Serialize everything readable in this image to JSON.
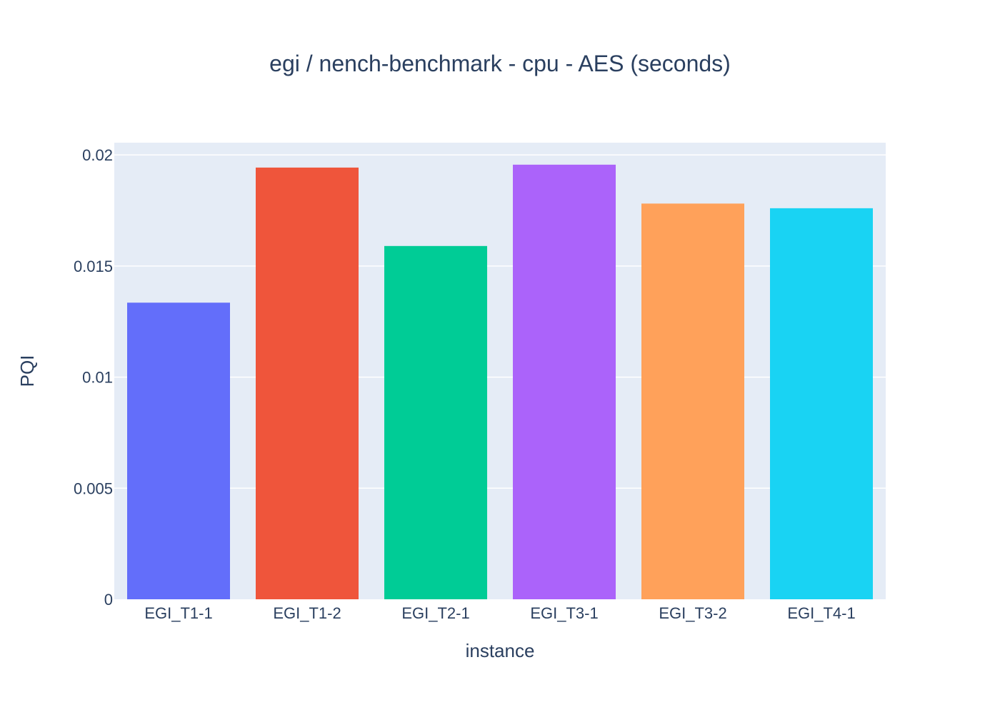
{
  "chart_data": {
    "type": "bar",
    "title": "egi / nench-benchmark - cpu - AES (seconds)",
    "xlabel": "instance",
    "ylabel": "PQI",
    "categories": [
      "EGI_T1-1",
      "EGI_T1-2",
      "EGI_T2-1",
      "EGI_T3-1",
      "EGI_T3-2",
      "EGI_T4-1"
    ],
    "values": [
      0.01335,
      0.01943,
      0.0159,
      0.01956,
      0.01781,
      0.0176
    ],
    "colors": [
      "#636efa",
      "#EF553B",
      "#00cc96",
      "#ab63fa",
      "#FFA15A",
      "#19d3f3"
    ],
    "ylim": [
      0,
      0.02055
    ],
    "yticks": [
      0,
      0.005,
      0.01,
      0.015,
      0.02
    ],
    "ytick_labels": [
      "0",
      "0.005",
      "0.01",
      "0.015",
      "0.02"
    ],
    "grid": true,
    "legend": "none",
    "plot_background": "#E5ECF6",
    "gridline_color": "#ffffff",
    "text_color": "#2a3f5f"
  }
}
